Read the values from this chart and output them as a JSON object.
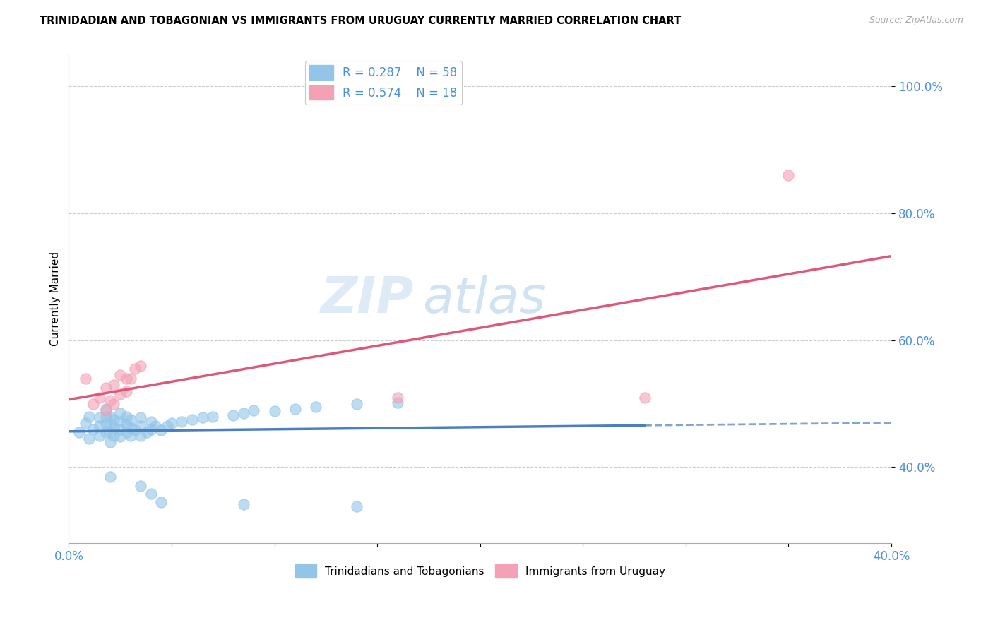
{
  "title": "TRINIDADIAN AND TOBAGONIAN VS IMMIGRANTS FROM URUGUAY CURRENTLY MARRIED CORRELATION CHART",
  "source": "Source: ZipAtlas.com",
  "ylabel": "Currently Married",
  "xlim": [
    0.0,
    0.4
  ],
  "ylim": [
    0.28,
    1.05
  ],
  "y_ticks": [
    0.4,
    0.6,
    0.8,
    1.0
  ],
  "y_tick_labels": [
    "40.0%",
    "60.0%",
    "80.0%",
    "100.0%"
  ],
  "x_ticks": [
    0.0,
    0.05,
    0.1,
    0.15,
    0.2,
    0.25,
    0.3,
    0.35,
    0.4
  ],
  "x_tick_labels": [
    "0.0%",
    "",
    "",
    "",
    "",
    "",
    "",
    "",
    "40.0%"
  ],
  "blue_R": 0.287,
  "blue_N": 58,
  "pink_R": 0.574,
  "pink_N": 18,
  "blue_color": "#92c5e8",
  "pink_color": "#f4a0b5",
  "blue_line_color": "#4a7fc1",
  "pink_line_color": "#e05878",
  "blue_scatter": [
    [
      0.005,
      0.455
    ],
    [
      0.008,
      0.47
    ],
    [
      0.01,
      0.445
    ],
    [
      0.01,
      0.48
    ],
    [
      0.012,
      0.46
    ],
    [
      0.015,
      0.45
    ],
    [
      0.015,
      0.465
    ],
    [
      0.015,
      0.478
    ],
    [
      0.018,
      0.455
    ],
    [
      0.018,
      0.468
    ],
    [
      0.018,
      0.48
    ],
    [
      0.018,
      0.492
    ],
    [
      0.02,
      0.44
    ],
    [
      0.02,
      0.455
    ],
    [
      0.02,
      0.468
    ],
    [
      0.02,
      0.48
    ],
    [
      0.022,
      0.45
    ],
    [
      0.022,
      0.462
    ],
    [
      0.022,
      0.475
    ],
    [
      0.025,
      0.448
    ],
    [
      0.025,
      0.46
    ],
    [
      0.025,
      0.472
    ],
    [
      0.025,
      0.485
    ],
    [
      0.028,
      0.455
    ],
    [
      0.028,
      0.468
    ],
    [
      0.028,
      0.48
    ],
    [
      0.03,
      0.45
    ],
    [
      0.03,
      0.462
    ],
    [
      0.03,
      0.475
    ],
    [
      0.032,
      0.458
    ],
    [
      0.035,
      0.45
    ],
    [
      0.035,
      0.465
    ],
    [
      0.035,
      0.478
    ],
    [
      0.038,
      0.455
    ],
    [
      0.04,
      0.46
    ],
    [
      0.04,
      0.472
    ],
    [
      0.042,
      0.465
    ],
    [
      0.045,
      0.458
    ],
    [
      0.048,
      0.465
    ],
    [
      0.05,
      0.47
    ],
    [
      0.055,
      0.472
    ],
    [
      0.06,
      0.475
    ],
    [
      0.065,
      0.478
    ],
    [
      0.07,
      0.48
    ],
    [
      0.08,
      0.482
    ],
    [
      0.085,
      0.485
    ],
    [
      0.09,
      0.49
    ],
    [
      0.1,
      0.488
    ],
    [
      0.11,
      0.492
    ],
    [
      0.12,
      0.495
    ],
    [
      0.14,
      0.5
    ],
    [
      0.16,
      0.502
    ],
    [
      0.02,
      0.385
    ],
    [
      0.035,
      0.37
    ],
    [
      0.04,
      0.358
    ],
    [
      0.045,
      0.345
    ],
    [
      0.085,
      0.342
    ],
    [
      0.14,
      0.338
    ]
  ],
  "pink_scatter": [
    [
      0.008,
      0.54
    ],
    [
      0.012,
      0.5
    ],
    [
      0.015,
      0.51
    ],
    [
      0.018,
      0.49
    ],
    [
      0.018,
      0.525
    ],
    [
      0.02,
      0.505
    ],
    [
      0.022,
      0.5
    ],
    [
      0.022,
      0.53
    ],
    [
      0.025,
      0.515
    ],
    [
      0.025,
      0.545
    ],
    [
      0.028,
      0.52
    ],
    [
      0.028,
      0.54
    ],
    [
      0.03,
      0.54
    ],
    [
      0.032,
      0.555
    ],
    [
      0.035,
      0.56
    ],
    [
      0.16,
      0.51
    ],
    [
      0.28,
      0.51
    ],
    [
      0.35,
      0.86
    ]
  ],
  "watermark_zip": "ZIP",
  "watermark_atlas": "atlas",
  "legend_blue_label": "R = 0.287    N = 58",
  "legend_pink_label": "R = 0.574    N = 18",
  "bottom_legend_blue": "Trinidadians and Tobagonians",
  "bottom_legend_pink": "Immigrants from Uruguay"
}
